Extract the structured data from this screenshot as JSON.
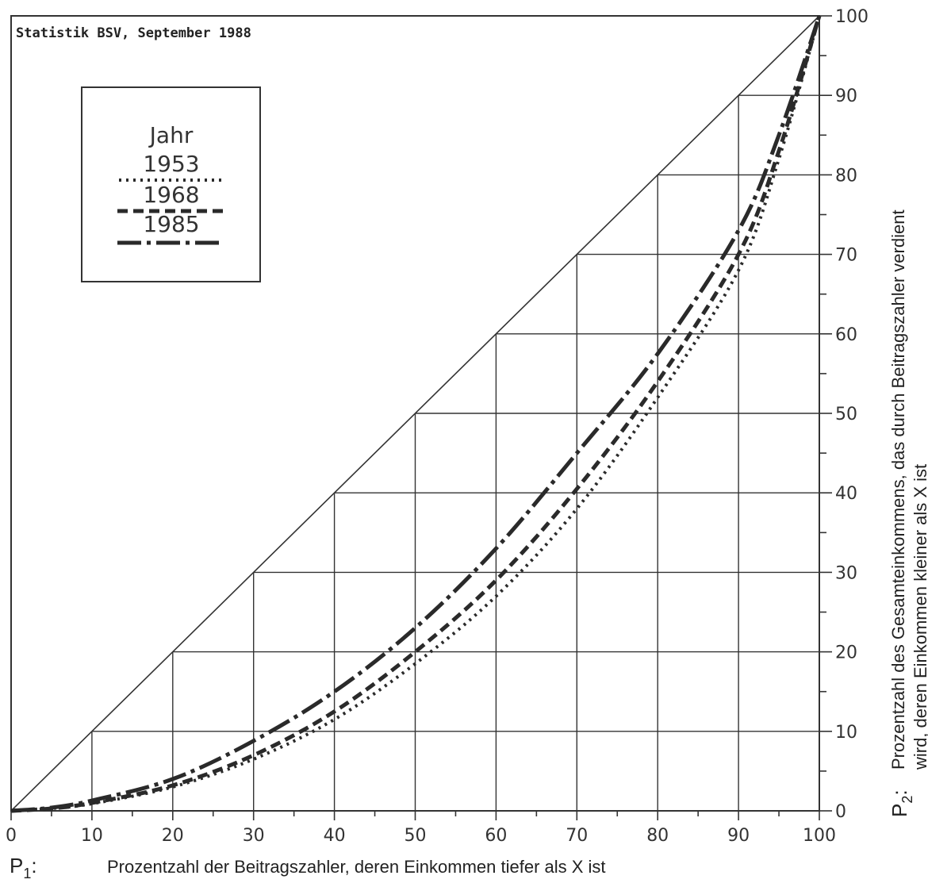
{
  "source_note": "Statistik BSV, September 1988",
  "chart_data": {
    "type": "line",
    "title": "",
    "xlabel_symbol": "P",
    "xlabel_subscript": "1",
    "xlabel_colon": ":",
    "xlabel": "Prozentzahl der Beitragszahler, deren Einkommen tiefer als X ist",
    "ylabel_symbol": "P",
    "ylabel_subscript": "2",
    "ylabel_colon": ":",
    "ylabel_line1": "Prozentzahl des Gesamteinkommens, das durch Beitragszahler verdient",
    "ylabel_line2": "wird, deren Einkommen kleiner als X ist",
    "xlim": [
      0,
      100
    ],
    "ylim": [
      0,
      100
    ],
    "x_ticks": [
      "0",
      "10",
      "20",
      "30",
      "40",
      "50",
      "60",
      "70",
      "80",
      "90",
      "100"
    ],
    "y_ticks": [
      "0",
      "10",
      "20",
      "30",
      "40",
      "50",
      "60",
      "70",
      "80",
      "90",
      "100"
    ],
    "grid": "staircase",
    "legend": {
      "title": "Jahr",
      "position": "top-left",
      "entries": [
        "1953",
        "1968",
        "1985"
      ]
    },
    "x": [
      0,
      5,
      10,
      20,
      30,
      40,
      50,
      60,
      70,
      80,
      90,
      95,
      100
    ],
    "series": [
      {
        "name": "1953",
        "style": "dotted",
        "values": [
          0,
          0.3,
          0.9,
          3,
          6.5,
          11.5,
          18.5,
          27,
          38,
          52,
          68,
          82,
          100
        ]
      },
      {
        "name": "1968",
        "style": "dashed",
        "values": [
          0,
          0.3,
          1,
          3.2,
          7,
          12.5,
          20,
          29,
          40.5,
          54,
          70,
          83,
          100
        ]
      },
      {
        "name": "1985",
        "style": "dash-dot",
        "values": [
          0,
          0.4,
          1.3,
          4,
          8.8,
          15,
          23,
          33,
          45,
          57.5,
          73,
          85,
          100
        ]
      }
    ],
    "colors": {
      "lines": "#2a2a2a",
      "grid": "#333333"
    }
  }
}
